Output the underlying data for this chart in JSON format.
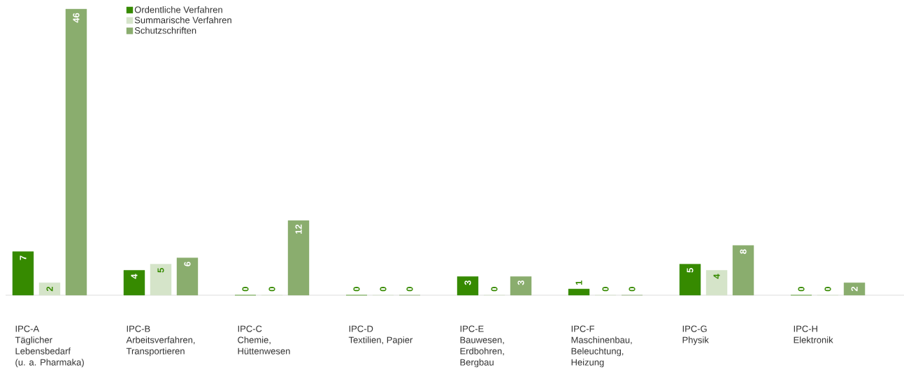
{
  "chart_data": {
    "type": "bar",
    "categories": [
      "IPC-A\nTäglicher\nLebensbedarf\n(u. a. Pharmaka)",
      "IPC-B\nArbeitsverfahren,\nTransportieren",
      "IPC-C\nChemie,\nHüttenwesen",
      "IPC-D\nTextilien, Papier",
      "IPC-E\nBauwesen,\nErdbohren,\nBergbau",
      "IPC-F\nMaschinenbau,\nBeleuchtung,\nHeizung",
      "IPC-G\nPhysik",
      "IPC-H\nElektronik"
    ],
    "series": [
      {
        "name": "Ordentliche Verfahren",
        "color": "#368a00",
        "values": [
          7,
          4,
          0,
          0,
          3,
          1,
          5,
          0
        ]
      },
      {
        "name": "Summarische Verfahren",
        "color": "#d5e4c9",
        "values": [
          2,
          5,
          0,
          0,
          0,
          0,
          4,
          0
        ]
      },
      {
        "name": "Schutzschriften",
        "color": "#8aad6e",
        "values": [
          46,
          6,
          12,
          0,
          3,
          0,
          8,
          2
        ]
      }
    ],
    "data_labels": true,
    "legend": "top left"
  }
}
